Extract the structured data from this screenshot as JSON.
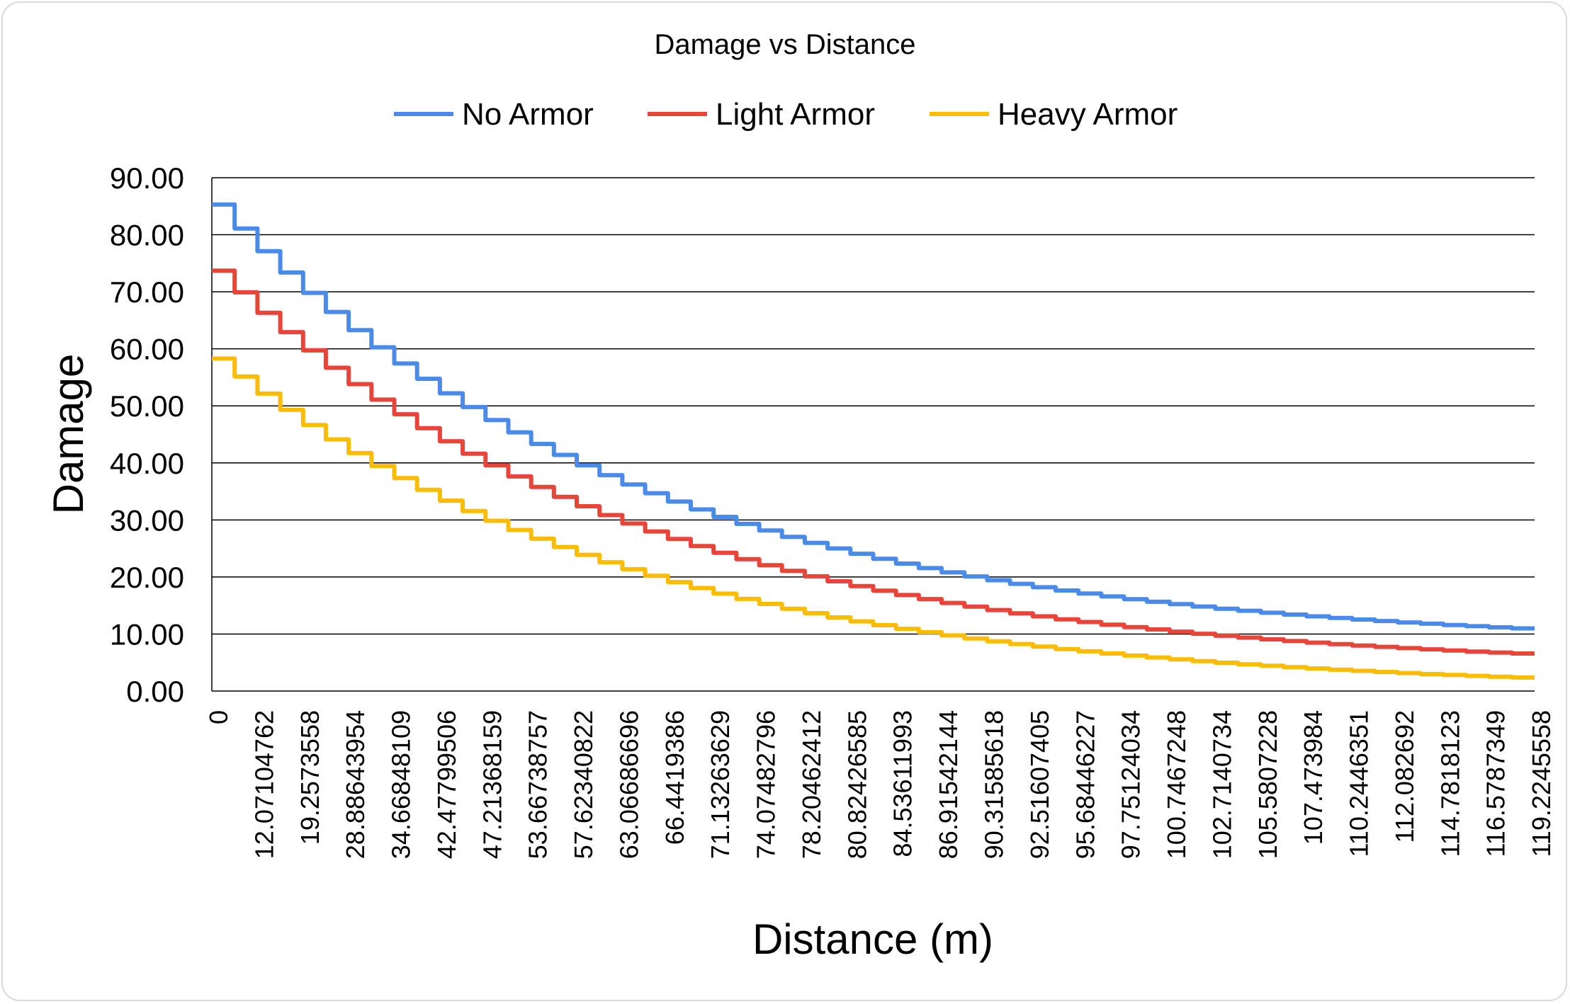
{
  "chart_data": {
    "type": "line",
    "title": "Damage vs Distance",
    "xlabel": "Distance (m)",
    "ylabel": "Damage",
    "ylim": [
      0,
      90
    ],
    "yticks": [
      "0.00",
      "10.00",
      "20.00",
      "30.00",
      "40.00",
      "50.00",
      "60.00",
      "70.00",
      "80.00",
      "90.00"
    ],
    "xtick_labels": [
      "0",
      "12.07104762",
      "19.2573558",
      "28.88643954",
      "34.66848109",
      "42.47799506",
      "47.21368159",
      "53.66738757",
      "57.62340822",
      "63.06686696",
      "66.4419386",
      "71.13263629",
      "74.07482796",
      "78.20462412",
      "80.82426585",
      "84.53611993",
      "86.91542144",
      "90.31585618",
      "92.51607405",
      "95.68446227",
      "97.75124034",
      "100.7467248",
      "102.7140734",
      "105.5807228",
      "107.473984",
      "110.2446351",
      "112.082692",
      "114.7818123",
      "116.5787349",
      "119.2245558"
    ],
    "n_points": 116,
    "grid": true,
    "legend_position": "top",
    "series": [
      {
        "name": "No Armor",
        "color": "#4a8ae8",
        "start": 85.3,
        "end": 10.9
      },
      {
        "name": "Light Armor",
        "color": "#e8443a",
        "start": 73.7,
        "end": 6.5
      },
      {
        "name": "Heavy Armor",
        "color": "#fbbc05",
        "start": 58.3,
        "end": 2.3
      }
    ]
  }
}
